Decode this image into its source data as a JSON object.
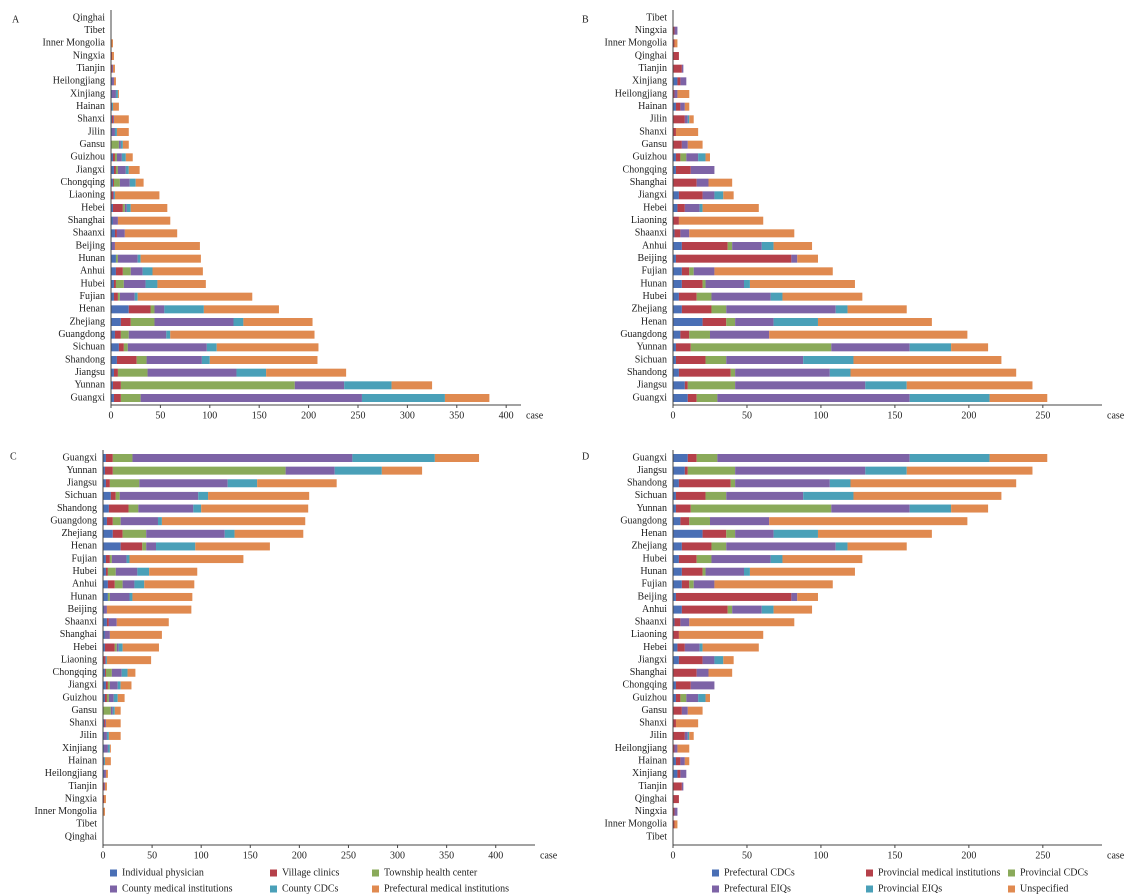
{
  "chart_data": [
    {
      "type": "bar",
      "orientation": "horizontal",
      "stacked": true,
      "label": "A",
      "xlabel": "case",
      "categories": [
        "Qinghai",
        "Tibet",
        "Inner Mongolia",
        "Ningxia",
        "Tianjin",
        "Heilongjiang",
        "Xinjiang",
        "Hainan",
        "Shanxi",
        "Jilin",
        "Gansu",
        "Guizhou",
        "Jiangxi",
        "Chongqing",
        "Liaoning",
        "Hebei",
        "Shanghai",
        "Shaanxi",
        "Beijing",
        "Hunan",
        "Anhui",
        "Hubei",
        "Fujian",
        "Henan",
        "Zhejiang",
        "Guangdong",
        "Sichuan",
        "Shandong",
        "Jiangsu",
        "Yunnan",
        "Guangxi"
      ],
      "series": [
        {
          "name": "Individual physician",
          "color": "#4a6fb5",
          "values": [
            0,
            0,
            0,
            0,
            0,
            1,
            1,
            0,
            1,
            1,
            0,
            2,
            3,
            2,
            0,
            2,
            2,
            4,
            1,
            5,
            5,
            3,
            3,
            18,
            10,
            4,
            8,
            6,
            3,
            2,
            3
          ]
        },
        {
          "name": "Village clinics",
          "color": "#b5404a",
          "values": [
            0,
            0,
            0,
            1,
            1,
            0,
            0,
            0,
            1,
            0,
            0,
            2,
            2,
            1,
            2,
            10,
            0,
            2,
            0,
            0,
            7,
            2,
            4,
            22,
            10,
            6,
            5,
            20,
            4,
            8,
            7
          ]
        },
        {
          "name": "Township health center",
          "color": "#8aaa5a",
          "values": [
            0,
            0,
            0,
            0,
            0,
            0,
            0,
            0,
            0,
            0,
            8,
            2,
            2,
            6,
            0,
            2,
            0,
            0,
            0,
            2,
            8,
            8,
            2,
            4,
            24,
            8,
            4,
            10,
            30,
            176,
            20
          ]
        },
        {
          "name": "County medical institutions",
          "color": "#7d63a6",
          "values": [
            0,
            0,
            0,
            0,
            1,
            2,
            4,
            1,
            1,
            3,
            2,
            5,
            8,
            10,
            1,
            2,
            5,
            8,
            3,
            20,
            12,
            22,
            15,
            10,
            80,
            38,
            80,
            56,
            90,
            50,
            224
          ]
        },
        {
          "name": "County CDCs",
          "color": "#4aa0b8",
          "values": [
            0,
            0,
            0,
            0,
            0,
            0,
            2,
            1,
            0,
            2,
            2,
            4,
            3,
            6,
            1,
            4,
            0,
            0,
            0,
            3,
            10,
            12,
            3,
            40,
            10,
            4,
            10,
            8,
            30,
            48,
            84
          ]
        },
        {
          "name": "Prefectural medical institutions",
          "color": "#e08a50",
          "values": [
            0,
            0,
            2,
            2,
            2,
            2,
            1,
            6,
            15,
            12,
            6,
            7,
            11,
            8,
            45,
            37,
            53,
            53,
            86,
            61,
            51,
            49,
            116,
            76,
            70,
            146,
            103,
            109,
            81,
            41,
            45
          ]
        }
      ],
      "xlim": [
        0,
        415
      ],
      "xticks": [
        0,
        50,
        100,
        150,
        200,
        250,
        300,
        350,
        400
      ]
    },
    {
      "type": "bar",
      "orientation": "horizontal",
      "stacked": true,
      "label": "B",
      "xlabel": "case",
      "categories": [
        "Tibet",
        "Ningxia",
        "Inner Mongolia",
        "Qinghai",
        "Tianjin",
        "Xinjiang",
        "Heilongjiang",
        "Hainan",
        "Jilin",
        "Shanxi",
        "Gansu",
        "Guizhou",
        "Chongqing",
        "Shanghai",
        "Jiangxi",
        "Hebei",
        "Liaoning",
        "Shaanxi",
        "Anhui",
        "Beijing",
        "Fujian",
        "Hunan",
        "Hubei",
        "Zhejiang",
        "Henan",
        "Guangdong",
        "Yunnan",
        "Sichuan",
        "Shandong",
        "Jiangsu",
        "Guangxi"
      ],
      "series": [
        {
          "name": "Prefectural CDCs",
          "color": "#4a6fb5",
          "values": [
            0,
            0,
            0,
            0,
            0,
            3,
            0,
            2,
            0,
            0,
            0,
            2,
            2,
            0,
            4,
            3,
            0,
            1,
            6,
            2,
            6,
            6,
            4,
            6,
            20,
            5,
            2,
            2,
            4,
            8,
            10
          ]
        },
        {
          "name": "Provincial medical institutions",
          "color": "#b5404a",
          "values": [
            0,
            1,
            1,
            4,
            6,
            2,
            1,
            3,
            8,
            2,
            6,
            3,
            10,
            16,
            16,
            5,
            4,
            4,
            31,
            78,
            5,
            14,
            12,
            20,
            16,
            6,
            10,
            20,
            35,
            2,
            6
          ]
        },
        {
          "name": "Provincial CDCs",
          "color": "#8aaa5a",
          "values": [
            0,
            0,
            0,
            0,
            0,
            0,
            0,
            0,
            0,
            0,
            0,
            4,
            0,
            0,
            0,
            0,
            0,
            0,
            3,
            0,
            3,
            2,
            10,
            10,
            6,
            14,
            95,
            14,
            3,
            32,
            14
          ]
        },
        {
          "name": "Prefectural EIQs",
          "color": "#7d63a6",
          "values": [
            0,
            2,
            0,
            0,
            1,
            4,
            2,
            3,
            2,
            0,
            4,
            8,
            16,
            8,
            8,
            10,
            0,
            6,
            20,
            4,
            14,
            26,
            40,
            74,
            26,
            40,
            53,
            52,
            64,
            88,
            130
          ]
        },
        {
          "name": "Provincial EIQs",
          "color": "#4aa0b8",
          "values": [
            0,
            0,
            0,
            0,
            0,
            0,
            0,
            0,
            1,
            0,
            0,
            5,
            0,
            0,
            6,
            2,
            0,
            0,
            8,
            0,
            0,
            4,
            8,
            8,
            30,
            0,
            28,
            34,
            14,
            28,
            54
          ]
        },
        {
          "name": "Unspecified",
          "color": "#e08a50",
          "values": [
            0,
            0,
            2,
            0,
            0,
            0,
            8,
            3,
            3,
            15,
            10,
            3,
            0,
            16,
            7,
            38,
            57,
            71,
            26,
            14,
            80,
            71,
            54,
            40,
            77,
            134,
            25,
            100,
            112,
            85,
            39
          ]
        }
      ],
      "xlim": [
        0,
        290
      ],
      "xticks": [
        0,
        50,
        100,
        150,
        200,
        250
      ]
    },
    {
      "type": "bar",
      "orientation": "horizontal",
      "stacked": true,
      "label": "C",
      "xlabel": "case",
      "legend": "bottom",
      "categories": [
        "Guangxi",
        "Yunnan",
        "Jiangsu",
        "Sichuan",
        "Shandong",
        "Guangdong",
        "Zhejiang",
        "Henan",
        "Fujian",
        "Hubei",
        "Anhui",
        "Hunan",
        "Beijing",
        "Shaanxi",
        "Shanghai",
        "Hebei",
        "Liaoning",
        "Chongqing",
        "Jiangxi",
        "Guizhou",
        "Gansu",
        "Shanxi",
        "Jilin",
        "Xinjiang",
        "Hainan",
        "Heilongjiang",
        "Tianjin",
        "Ningxia",
        "Inner Mongolia",
        "Tibet",
        "Qinghai"
      ],
      "series": [
        {
          "name": "Individual physician",
          "color": "#4a6fb5",
          "values": [
            3,
            2,
            3,
            8,
            6,
            4,
            10,
            18,
            3,
            3,
            5,
            5,
            1,
            4,
            2,
            2,
            0,
            2,
            3,
            2,
            0,
            1,
            1,
            1,
            0,
            1,
            0,
            0,
            0,
            0,
            0
          ]
        },
        {
          "name": "Village clinics",
          "color": "#b5404a",
          "values": [
            7,
            8,
            4,
            5,
            20,
            6,
            10,
            22,
            4,
            2,
            7,
            0,
            0,
            2,
            0,
            10,
            2,
            1,
            2,
            2,
            0,
            1,
            0,
            0,
            0,
            0,
            1,
            1,
            0,
            0,
            0
          ]
        },
        {
          "name": "Township health center",
          "color": "#8aaa5a",
          "values": [
            20,
            176,
            30,
            4,
            10,
            8,
            24,
            4,
            2,
            8,
            8,
            2,
            0,
            0,
            0,
            2,
            0,
            6,
            2,
            2,
            8,
            0,
            0,
            0,
            0,
            0,
            0,
            0,
            0,
            0,
            0
          ]
        },
        {
          "name": "County medical institutions",
          "color": "#7d63a6",
          "values": [
            224,
            50,
            90,
            80,
            56,
            38,
            80,
            10,
            15,
            22,
            12,
            20,
            3,
            8,
            5,
            2,
            1,
            10,
            8,
            5,
            2,
            1,
            3,
            4,
            1,
            2,
            1,
            0,
            0,
            0,
            0
          ]
        },
        {
          "name": "County CDCs",
          "color": "#4aa0b8",
          "values": [
            84,
            48,
            30,
            10,
            8,
            4,
            10,
            40,
            3,
            12,
            10,
            3,
            0,
            0,
            0,
            4,
            1,
            6,
            3,
            4,
            2,
            0,
            2,
            2,
            1,
            0,
            0,
            0,
            0,
            0,
            0
          ]
        },
        {
          "name": "Prefectural medical institutions",
          "color": "#e08a50",
          "values": [
            45,
            41,
            81,
            103,
            109,
            146,
            70,
            76,
            116,
            49,
            51,
            61,
            86,
            53,
            53,
            37,
            45,
            8,
            11,
            7,
            6,
            15,
            12,
            1,
            6,
            2,
            2,
            2,
            2,
            0,
            0
          ]
        }
      ],
      "xlim": [
        0,
        440
      ],
      "xticks": [
        0,
        50,
        100,
        150,
        200,
        250,
        300,
        350,
        400
      ]
    },
    {
      "type": "bar",
      "orientation": "horizontal",
      "stacked": true,
      "label": "D",
      "xlabel": "case",
      "legend": "bottom",
      "categories": [
        "Guangxi",
        "Jiangsu",
        "Shandong",
        "Sichuan",
        "Yunnan",
        "Guangdong",
        "Henan",
        "Zhejiang",
        "Hubei",
        "Hunan",
        "Fujian",
        "Beijing",
        "Anhui",
        "Shaanxi",
        "Liaoning",
        "Hebei",
        "Jiangxi",
        "Shanghai",
        "Chongqing",
        "Guizhou",
        "Gansu",
        "Shanxi",
        "Jilin",
        "Heilongjiang",
        "Hainan",
        "Xinjiang",
        "Tianjin",
        "Qinghai",
        "Ningxia",
        "Inner Mongolia",
        "Tibet"
      ],
      "series": [
        {
          "name": "Prefectural CDCs",
          "color": "#4a6fb5",
          "values": [
            10,
            8,
            4,
            2,
            2,
            5,
            20,
            6,
            4,
            6,
            6,
            2,
            6,
            1,
            0,
            3,
            4,
            0,
            2,
            2,
            0,
            0,
            0,
            0,
            2,
            3,
            0,
            0,
            0,
            0,
            0
          ]
        },
        {
          "name": "Provincial medical institutions",
          "color": "#b5404a",
          "values": [
            6,
            2,
            35,
            20,
            10,
            6,
            16,
            20,
            12,
            14,
            5,
            78,
            31,
            4,
            4,
            5,
            16,
            16,
            10,
            3,
            6,
            2,
            8,
            1,
            3,
            2,
            6,
            4,
            1,
            1,
            0
          ]
        },
        {
          "name": "Provincial CDCs",
          "color": "#8aaa5a",
          "values": [
            14,
            32,
            3,
            14,
            95,
            14,
            6,
            10,
            10,
            2,
            3,
            0,
            3,
            0,
            0,
            0,
            0,
            0,
            0,
            4,
            0,
            0,
            0,
            0,
            0,
            0,
            0,
            0,
            0,
            0,
            0
          ]
        },
        {
          "name": "Prefectural EIQs",
          "color": "#7d63a6",
          "values": [
            130,
            88,
            64,
            52,
            53,
            40,
            26,
            74,
            40,
            26,
            14,
            4,
            20,
            6,
            0,
            10,
            8,
            8,
            16,
            8,
            4,
            0,
            2,
            2,
            3,
            4,
            1,
            0,
            2,
            0,
            0
          ]
        },
        {
          "name": "Provincial EIQs",
          "color": "#4aa0b8",
          "values": [
            54,
            28,
            14,
            34,
            28,
            0,
            30,
            8,
            8,
            4,
            0,
            0,
            8,
            0,
            0,
            2,
            6,
            0,
            0,
            5,
            0,
            0,
            1,
            0,
            0,
            0,
            0,
            0,
            0,
            0,
            0
          ]
        },
        {
          "name": "Unspecified",
          "color": "#e08a50",
          "values": [
            39,
            85,
            112,
            100,
            25,
            134,
            77,
            40,
            54,
            71,
            80,
            14,
            26,
            71,
            57,
            38,
            7,
            16,
            0,
            3,
            10,
            15,
            3,
            8,
            3,
            0,
            0,
            0,
            0,
            2,
            0
          ]
        }
      ],
      "xlim": [
        0,
        290
      ],
      "xticks": [
        0,
        50,
        100,
        150,
        200,
        250
      ]
    }
  ]
}
